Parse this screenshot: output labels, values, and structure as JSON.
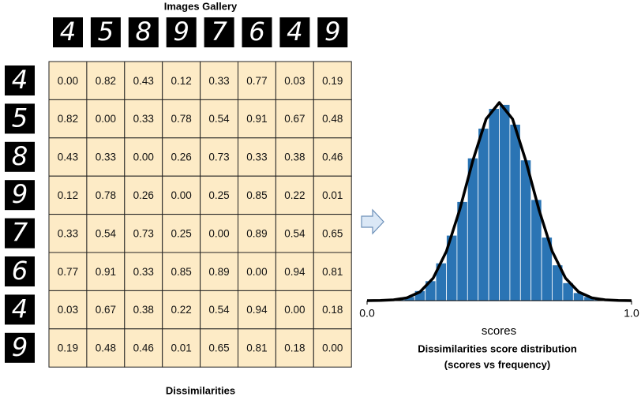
{
  "gallery": {
    "title": "Images Gallery",
    "digits": [
      "4",
      "5",
      "8",
      "9",
      "7",
      "6",
      "4",
      "9"
    ]
  },
  "table": {
    "caption": "Dissimilarities",
    "row_digits": [
      "4",
      "5",
      "8",
      "9",
      "7",
      "6",
      "4",
      "9"
    ],
    "rows": [
      [
        "0.00",
        "0.82",
        "0.43",
        "0.12",
        "0.33",
        "0.77",
        "0.03",
        "0.19"
      ],
      [
        "0.82",
        "0.00",
        "0.33",
        "0.78",
        "0.54",
        "0.91",
        "0.67",
        "0.48"
      ],
      [
        "0.43",
        "0.33",
        "0.00",
        "0.26",
        "0.73",
        "0.33",
        "0.38",
        "0.46"
      ],
      [
        "0.12",
        "0.78",
        "0.26",
        "0.00",
        "0.25",
        "0.85",
        "0.22",
        "0.01"
      ],
      [
        "0.33",
        "0.54",
        "0.73",
        "0.25",
        "0.00",
        "0.89",
        "0.54",
        "0.65"
      ],
      [
        "0.77",
        "0.91",
        "0.33",
        "0.85",
        "0.89",
        "0.00",
        "0.94",
        "0.81"
      ],
      [
        "0.03",
        "0.67",
        "0.38",
        "0.22",
        "0.54",
        "0.94",
        "0.00",
        "0.18"
      ],
      [
        "0.19",
        "0.48",
        "0.46",
        "0.01",
        "0.65",
        "0.81",
        "0.18",
        "0.00"
      ]
    ]
  },
  "chart_data": {
    "type": "histogram",
    "title": "Dissimilarities score distribution",
    "subtitle": "(scores vs frequency)",
    "xlabel": "scores",
    "bins": [
      0.1,
      0.14,
      0.18,
      0.22,
      0.26,
      0.3,
      0.34,
      0.38,
      0.42,
      0.46,
      0.5,
      0.54,
      0.58,
      0.62,
      0.66,
      0.7,
      0.74,
      0.78,
      0.82,
      0.86,
      0.9
    ],
    "values": [
      1,
      2,
      5,
      10,
      19,
      33,
      50,
      72,
      87,
      97,
      99,
      89,
      71,
      51,
      32,
      18,
      9,
      4,
      2,
      1
    ],
    "color": "#2a74b4",
    "curve": {
      "color": "#000000",
      "x": [
        0,
        0.05,
        0.1,
        0.15,
        0.2,
        0.25,
        0.3,
        0.35,
        0.4,
        0.45,
        0.5,
        0.55,
        0.6,
        0.65,
        0.7,
        0.75,
        0.8,
        0.85,
        0.9,
        0.95,
        1
      ],
      "y": [
        0,
        0.1,
        0.4,
        1.4,
        4.4,
        11.4,
        24.9,
        45.8,
        70.7,
        91.7,
        100,
        91.7,
        70.7,
        45.8,
        24.9,
        11.4,
        4.4,
        1.4,
        0.4,
        0.1,
        0
      ]
    },
    "xlim": [
      0,
      1
    ],
    "ylim": [
      0,
      100
    ],
    "xticks": [
      {
        "value": 0,
        "label": "0.0"
      },
      {
        "value": 1,
        "label": "1.0"
      }
    ]
  }
}
